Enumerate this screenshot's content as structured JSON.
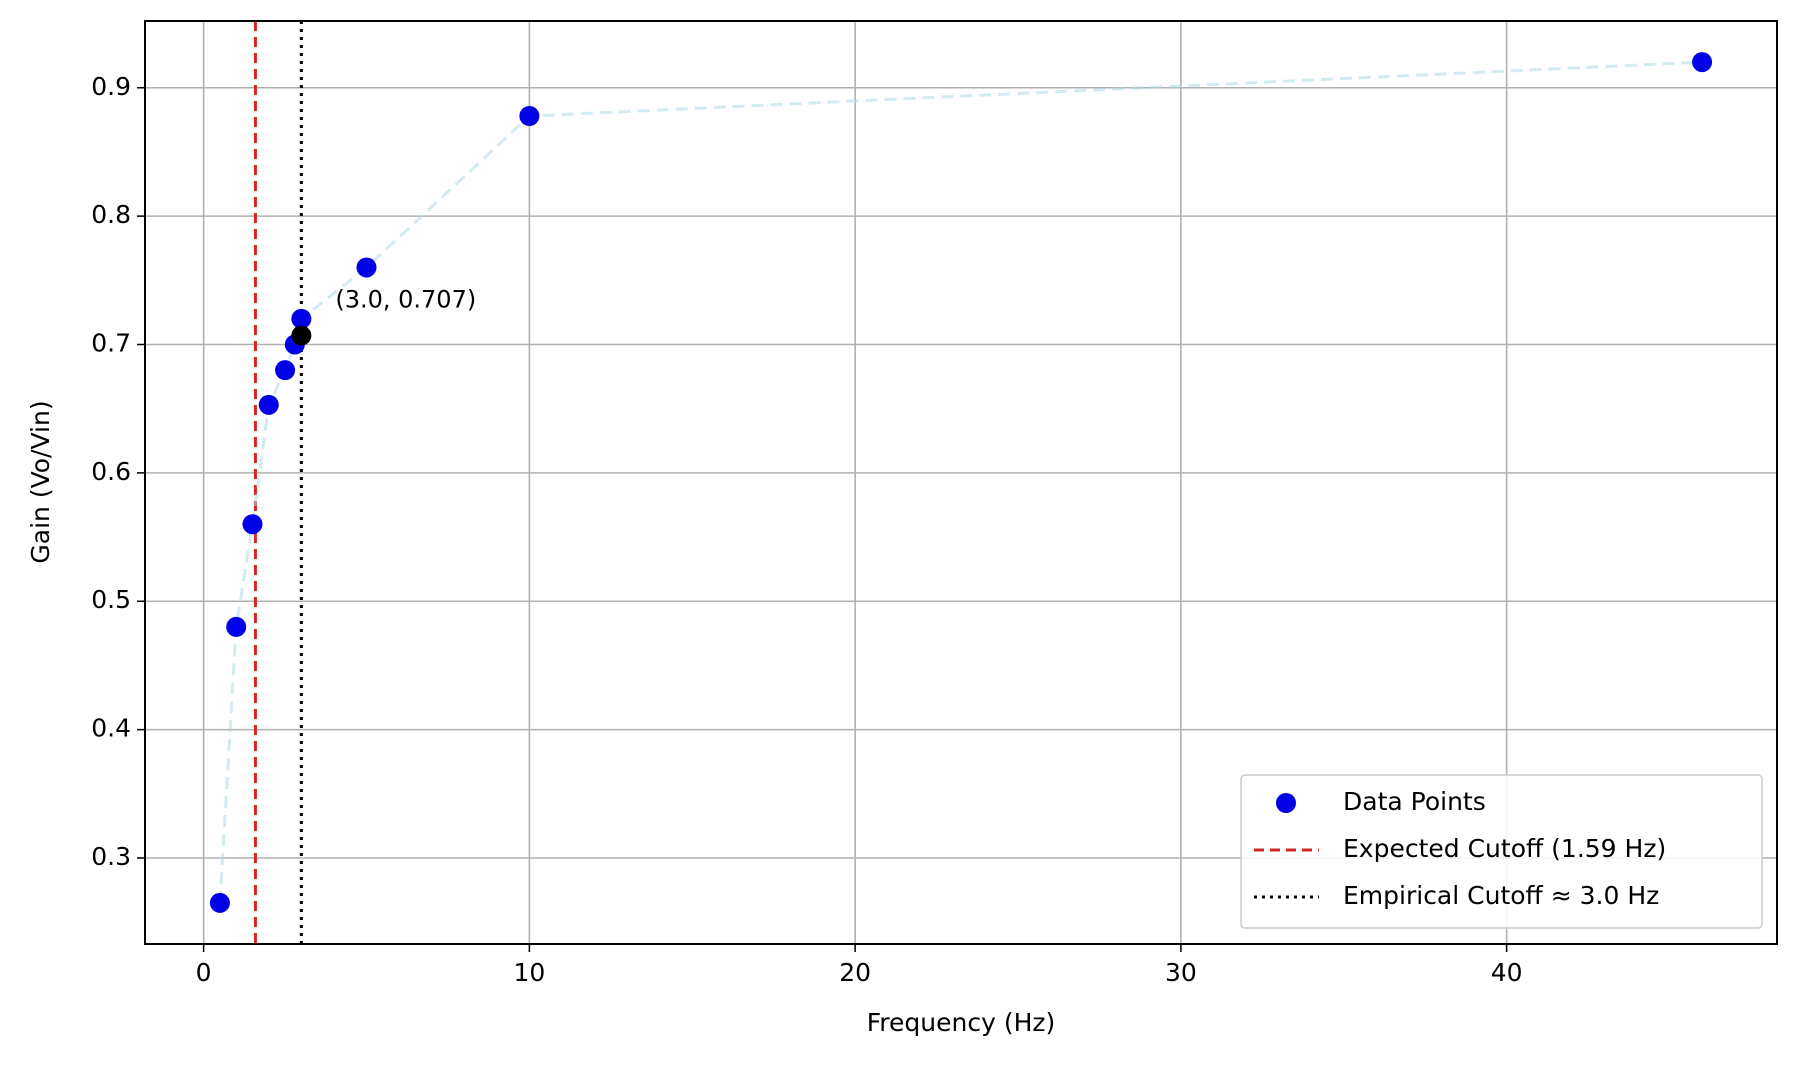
{
  "chart_data": {
    "type": "scatter",
    "x_label": "Frequency (Hz)",
    "y_label": "Gain (Vo/Vin)",
    "xlim": [
      -1.8,
      48.3
    ],
    "ylim": [
      0.233,
      0.952
    ],
    "xticks": [
      0,
      10,
      20,
      30,
      40
    ],
    "yticks": [
      0.3,
      0.4,
      0.5,
      0.6,
      0.7,
      0.8,
      0.9
    ],
    "grid": true,
    "legend": "lower right",
    "series": [
      {
        "name": "Data Points",
        "color": "#0000e6",
        "line_color": "#add8e6",
        "x": [
          0.5,
          1.0,
          1.5,
          2.0,
          2.5,
          2.8,
          3.0,
          5.0,
          10,
          46
        ],
        "values": [
          0.265,
          0.48,
          0.56,
          0.653,
          0.68,
          0.7,
          0.72,
          0.76,
          0.878,
          0.92
        ]
      }
    ],
    "reference_lines": [
      {
        "name": "Expected Cutoff (1.59 Hz)",
        "x": 1.59,
        "color": "#d62728",
        "style": "dashed"
      },
      {
        "name": "Empirical Cutoff ≈ 3.0 Hz",
        "x": 3.0,
        "color": "#000000",
        "style": "dotted"
      }
    ],
    "annotations": [
      {
        "text": "(3.0, 0.707)",
        "x": 3.0,
        "y": 0.707,
        "color": "#000000"
      }
    ]
  }
}
